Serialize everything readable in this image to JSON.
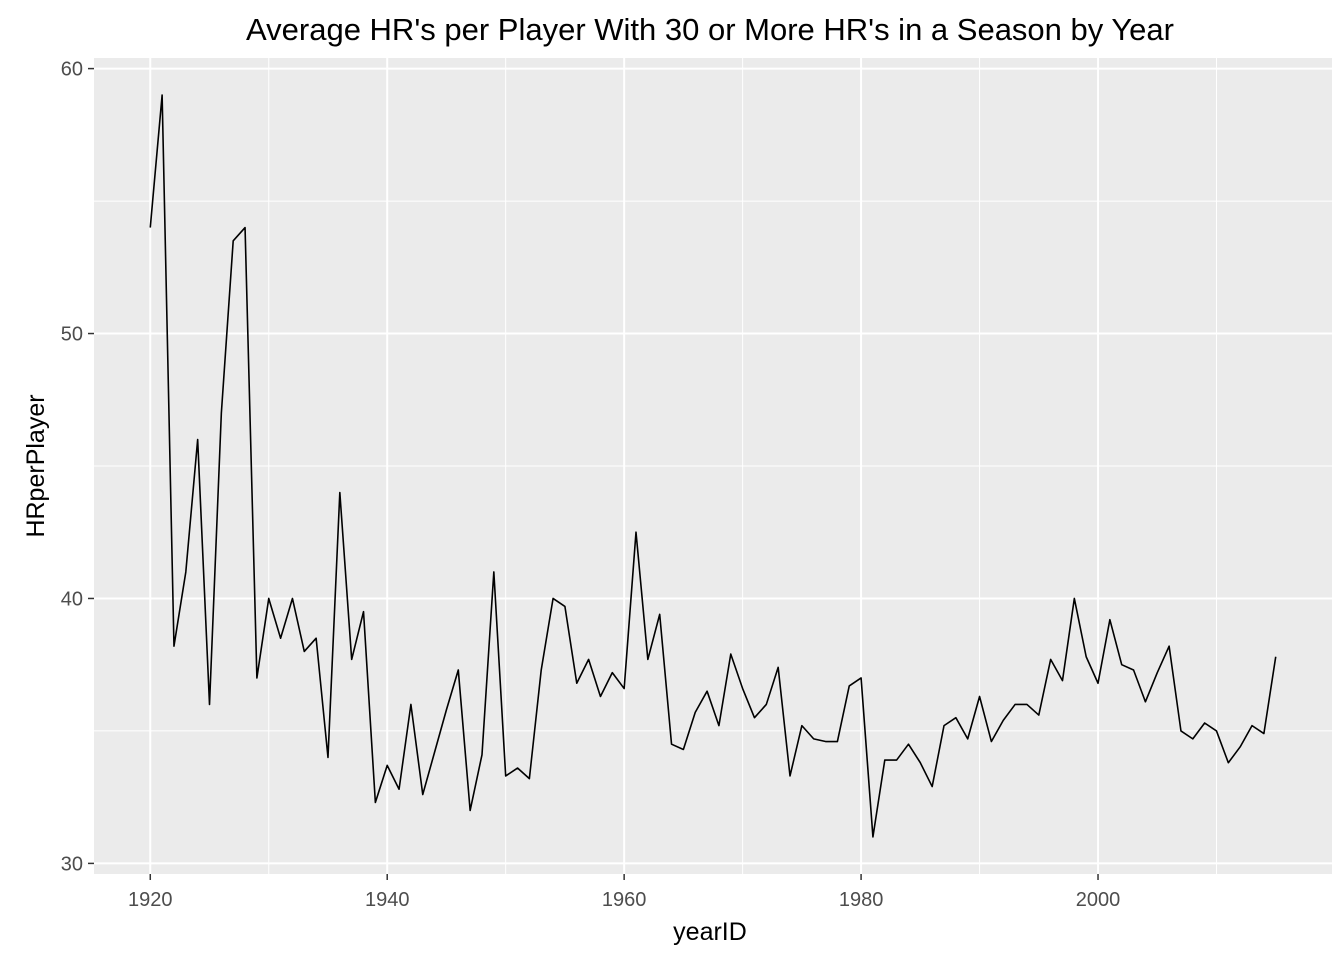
{
  "chart_data": {
    "type": "line",
    "title": "Average HR's per Player With 30 or More HR's in a Season by Year",
    "xlabel": "yearID",
    "ylabel": "HRperPlayer",
    "xlim": [
      1915.25,
      1919.75
    ],
    "ylim": [
      29.6,
      60.4
    ],
    "xticks": [
      "1920",
      "1940",
      "1960",
      "1980",
      "2000"
    ],
    "yticks": [
      "30",
      "40",
      "50",
      "60"
    ],
    "grid": true,
    "legend": "none",
    "colors": {
      "panel": "#ebebeb",
      "grid": "#ffffff",
      "line": "#000000"
    },
    "series": [
      {
        "x": [
          1920,
          1921,
          1922,
          1923,
          1924,
          1925,
          1926,
          1927,
          1928,
          1929,
          1930,
          1931,
          1932,
          1933,
          1934,
          1935,
          1936,
          1937,
          1938,
          1939,
          1940,
          1941,
          1942,
          1943,
          1944,
          1945,
          1946,
          1947,
          1948,
          1949,
          1950,
          1951,
          1952,
          1953,
          1954,
          1955,
          1956,
          1957,
          1958,
          1959,
          1960,
          1961,
          1962,
          1963,
          1964,
          1965,
          1966,
          1967,
          1968,
          1969,
          1970,
          1971,
          1972,
          1973,
          1974,
          1975,
          1976,
          1977,
          1978,
          1979,
          1980,
          1981,
          1982,
          1983,
          1984,
          1985,
          1986,
          1987,
          1988,
          1989,
          1990,
          1991,
          1992,
          1993,
          1994,
          1995,
          1996,
          1997,
          1998,
          1999,
          2000,
          2001,
          2002,
          2003,
          2004,
          2005,
          2006,
          2007,
          2008,
          2009,
          2010,
          2011,
          2012,
          2013,
          2014,
          2015
        ],
        "values": [
          54,
          59,
          38.2,
          41,
          46,
          36,
          47,
          53.5,
          54,
          37,
          40,
          38.5,
          40,
          38,
          38.5,
          34,
          44,
          37.7,
          39.5,
          32.3,
          33.7,
          32.8,
          36,
          32.6,
          34.2,
          35.8,
          37.3,
          32,
          34.1,
          41,
          33.3,
          33.6,
          33.2,
          37.3,
          40,
          39.7,
          36.8,
          37.7,
          36.3,
          37.2,
          36.6,
          42.5,
          37.7,
          39.4,
          34.5,
          34.3,
          35.7,
          36.5,
          35.2,
          37.9,
          36.6,
          35.5,
          36,
          37.4,
          33.3,
          35.2,
          34.7,
          34.6,
          34.6,
          36.7,
          37,
          31,
          33.9,
          33.9,
          34.5,
          33.8,
          32.9,
          35.2,
          35.5,
          34.7,
          36.3,
          34.6,
          35.4,
          36,
          36,
          35.6,
          37.7,
          36.9,
          40,
          37.8,
          36.8,
          39.2,
          37.5,
          37.3,
          36.1,
          37.2,
          38.2,
          35,
          34.7,
          35.3,
          35,
          33.8,
          34.4,
          35.2,
          34.9,
          37.8
        ]
      }
    ]
  }
}
